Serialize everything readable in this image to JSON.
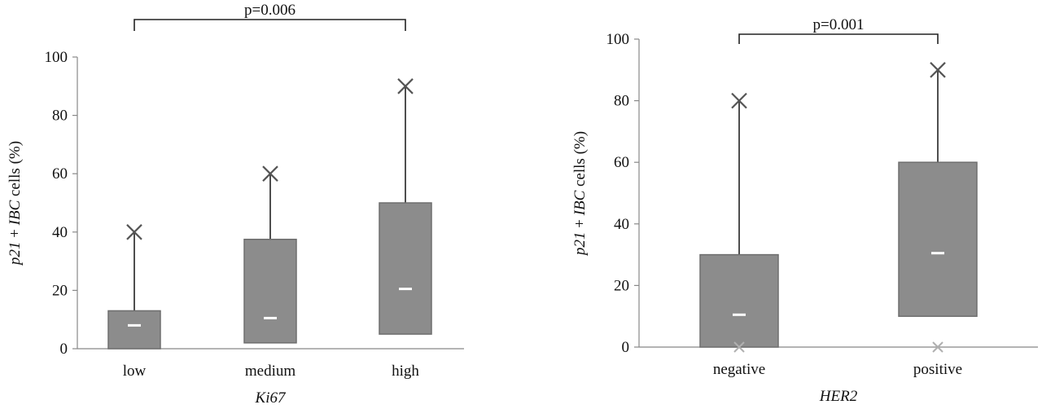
{
  "chart_data": [
    {
      "type": "box",
      "ylabel_parts": [
        "p21",
        " + ",
        "IBC",
        " cells  (%)"
      ],
      "xlabel": "Ki67",
      "ylim": [
        0,
        100
      ],
      "yticks": [
        "0",
        "20",
        "40",
        "60",
        "80",
        "100"
      ],
      "categories": [
        "low",
        "medium",
        "high"
      ],
      "boxes": [
        {
          "q1": 0,
          "q3": 13,
          "median": 8,
          "max": 40,
          "min": null
        },
        {
          "q1": 2,
          "q3": 37.5,
          "median": 10.5,
          "max": 60,
          "min": null
        },
        {
          "q1": 5,
          "q3": 50,
          "median": 20.5,
          "max": 90,
          "min": null
        }
      ],
      "significance": {
        "label": "p=0.006",
        "from": "low",
        "to": "high"
      }
    },
    {
      "type": "box",
      "ylabel_parts": [
        "p21",
        " + ",
        "IBC",
        " cells  (%)"
      ],
      "xlabel": "HER2",
      "ylim": [
        0,
        100
      ],
      "yticks": [
        "0",
        "20",
        "40",
        "60",
        "80",
        "100"
      ],
      "categories": [
        "negative",
        "positive"
      ],
      "boxes": [
        {
          "q1": 0,
          "q3": 30,
          "median": 10.5,
          "max": 80,
          "min": 0
        },
        {
          "q1": 10,
          "q3": 60,
          "median": 30.5,
          "max": 90,
          "min": 0
        }
      ],
      "significance": {
        "label": "p=0.001",
        "from": "negative",
        "to": "positive"
      }
    }
  ]
}
